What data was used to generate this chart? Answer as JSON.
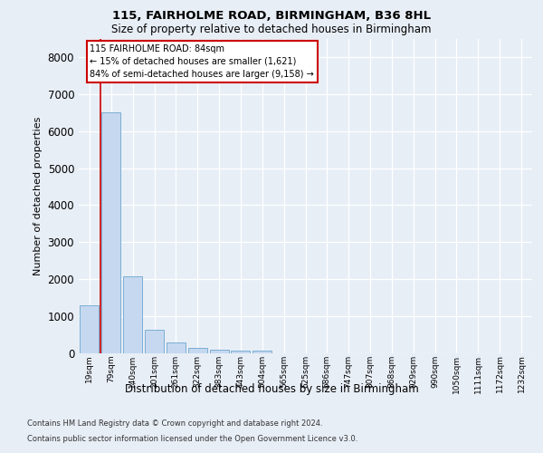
{
  "title_line1": "115, FAIRHOLME ROAD, BIRMINGHAM, B36 8HL",
  "title_line2": "Size of property relative to detached houses in Birmingham",
  "xlabel": "Distribution of detached houses by size in Birmingham",
  "ylabel": "Number of detached properties",
  "bin_labels": [
    "19sqm",
    "79sqm",
    "140sqm",
    "201sqm",
    "261sqm",
    "322sqm",
    "383sqm",
    "443sqm",
    "504sqm",
    "565sqm",
    "625sqm",
    "686sqm",
    "747sqm",
    "807sqm",
    "868sqm",
    "929sqm",
    "990sqm",
    "1050sqm",
    "1111sqm",
    "1172sqm",
    "1232sqm"
  ],
  "bar_values": [
    1300,
    6500,
    2080,
    630,
    300,
    150,
    110,
    70,
    70,
    0,
    0,
    0,
    0,
    0,
    0,
    0,
    0,
    0,
    0,
    0,
    0
  ],
  "bar_color": "#c5d8f0",
  "bar_edge_color": "#7bafd4",
  "annotation_text": "115 FAIRHOLME ROAD: 84sqm\n← 15% of detached houses are smaller (1,621)\n84% of semi-detached houses are larger (9,158) →",
  "vline_x": 0.5,
  "vline_color": "#cc0000",
  "box_edge_color": "#cc0000",
  "ylim": [
    0,
    8500
  ],
  "yticks": [
    0,
    1000,
    2000,
    3000,
    4000,
    5000,
    6000,
    7000,
    8000
  ],
  "background_color": "#e8eef6",
  "grid_color": "#ffffff",
  "figsize": [
    6.0,
    5.0
  ],
  "dpi": 100,
  "footer_line1": "Contains HM Land Registry data © Crown copyright and database right 2024.",
  "footer_line2": "Contains public sector information licensed under the Open Government Licence v3.0."
}
